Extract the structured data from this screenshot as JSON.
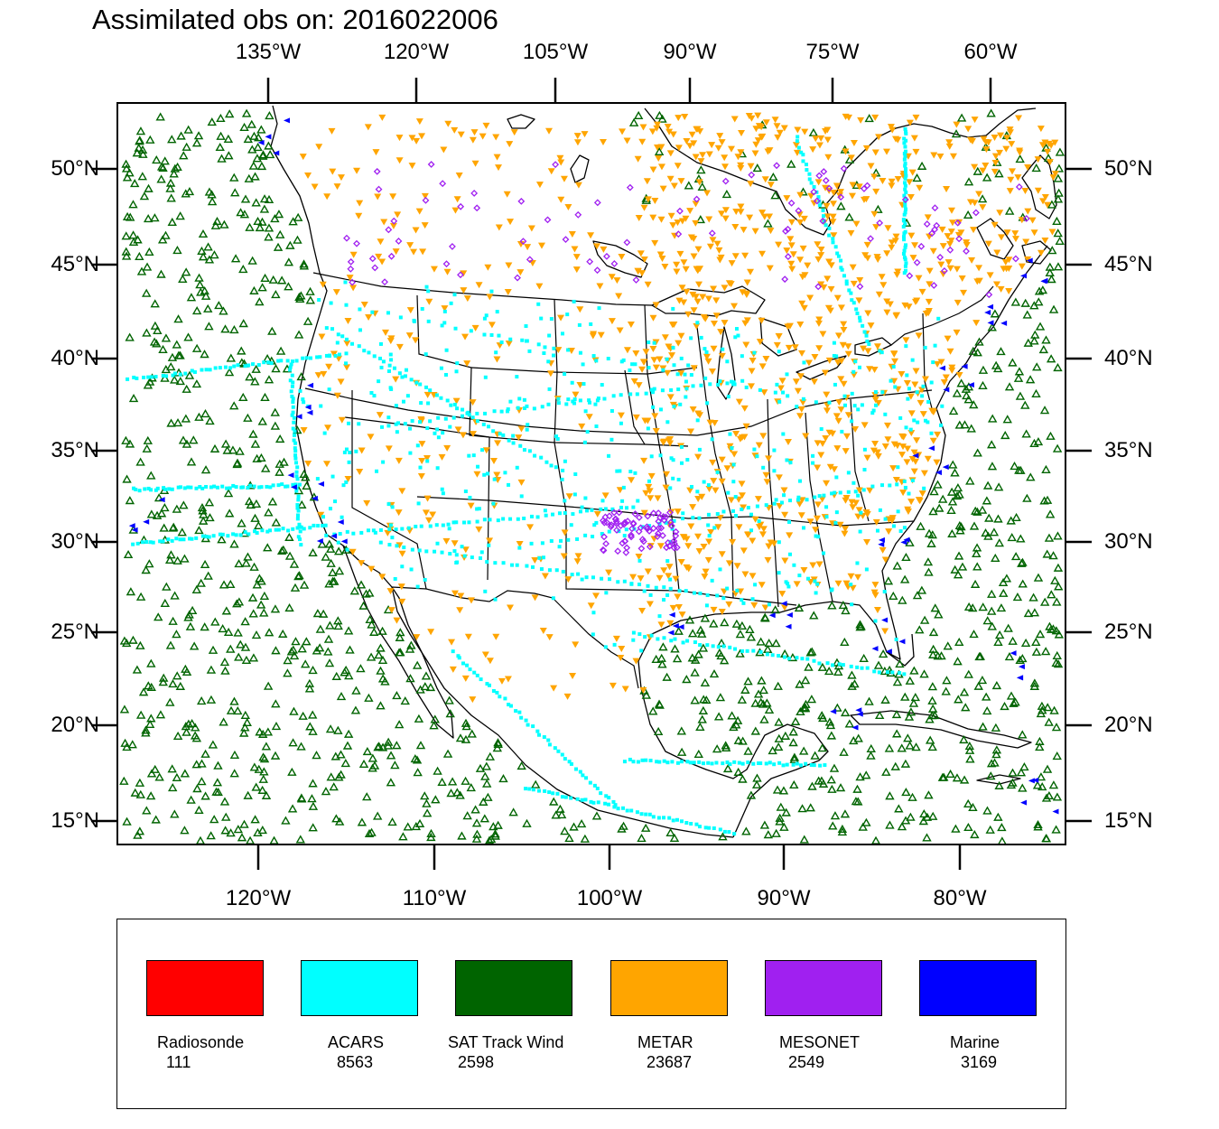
{
  "title": "Assimilated obs on: 2016022006",
  "axes": {
    "top": [
      "135°W",
      "120°W",
      "105°W",
      "90°W",
      "75°W",
      "60°W"
    ],
    "bottom": [
      "120°W",
      "110°W",
      "100°W",
      "90°W",
      "80°W"
    ],
    "left": [
      "50°N",
      "45°N",
      "40°N",
      "35°N",
      "30°N",
      "25°N",
      "20°N",
      "15°N"
    ],
    "right": [
      "50°N",
      "45°N",
      "40°N",
      "35°N",
      "30°N",
      "25°N",
      "20°N",
      "15°N"
    ]
  },
  "legend": [
    {
      "name": "Radiosonde",
      "count": "111",
      "color": "#ff0000"
    },
    {
      "name": "ACARS",
      "count": "8563",
      "color": "#00ffff"
    },
    {
      "name": "SAT Track Wind",
      "count": "2598",
      "color": "#006400"
    },
    {
      "name": "METAR",
      "count": "23687",
      "color": "#ffa500"
    },
    {
      "name": "MESONET",
      "count": "2549",
      "color": "#a020f0"
    },
    {
      "name": "Marine",
      "count": "3169",
      "color": "#0000ff"
    }
  ]
}
